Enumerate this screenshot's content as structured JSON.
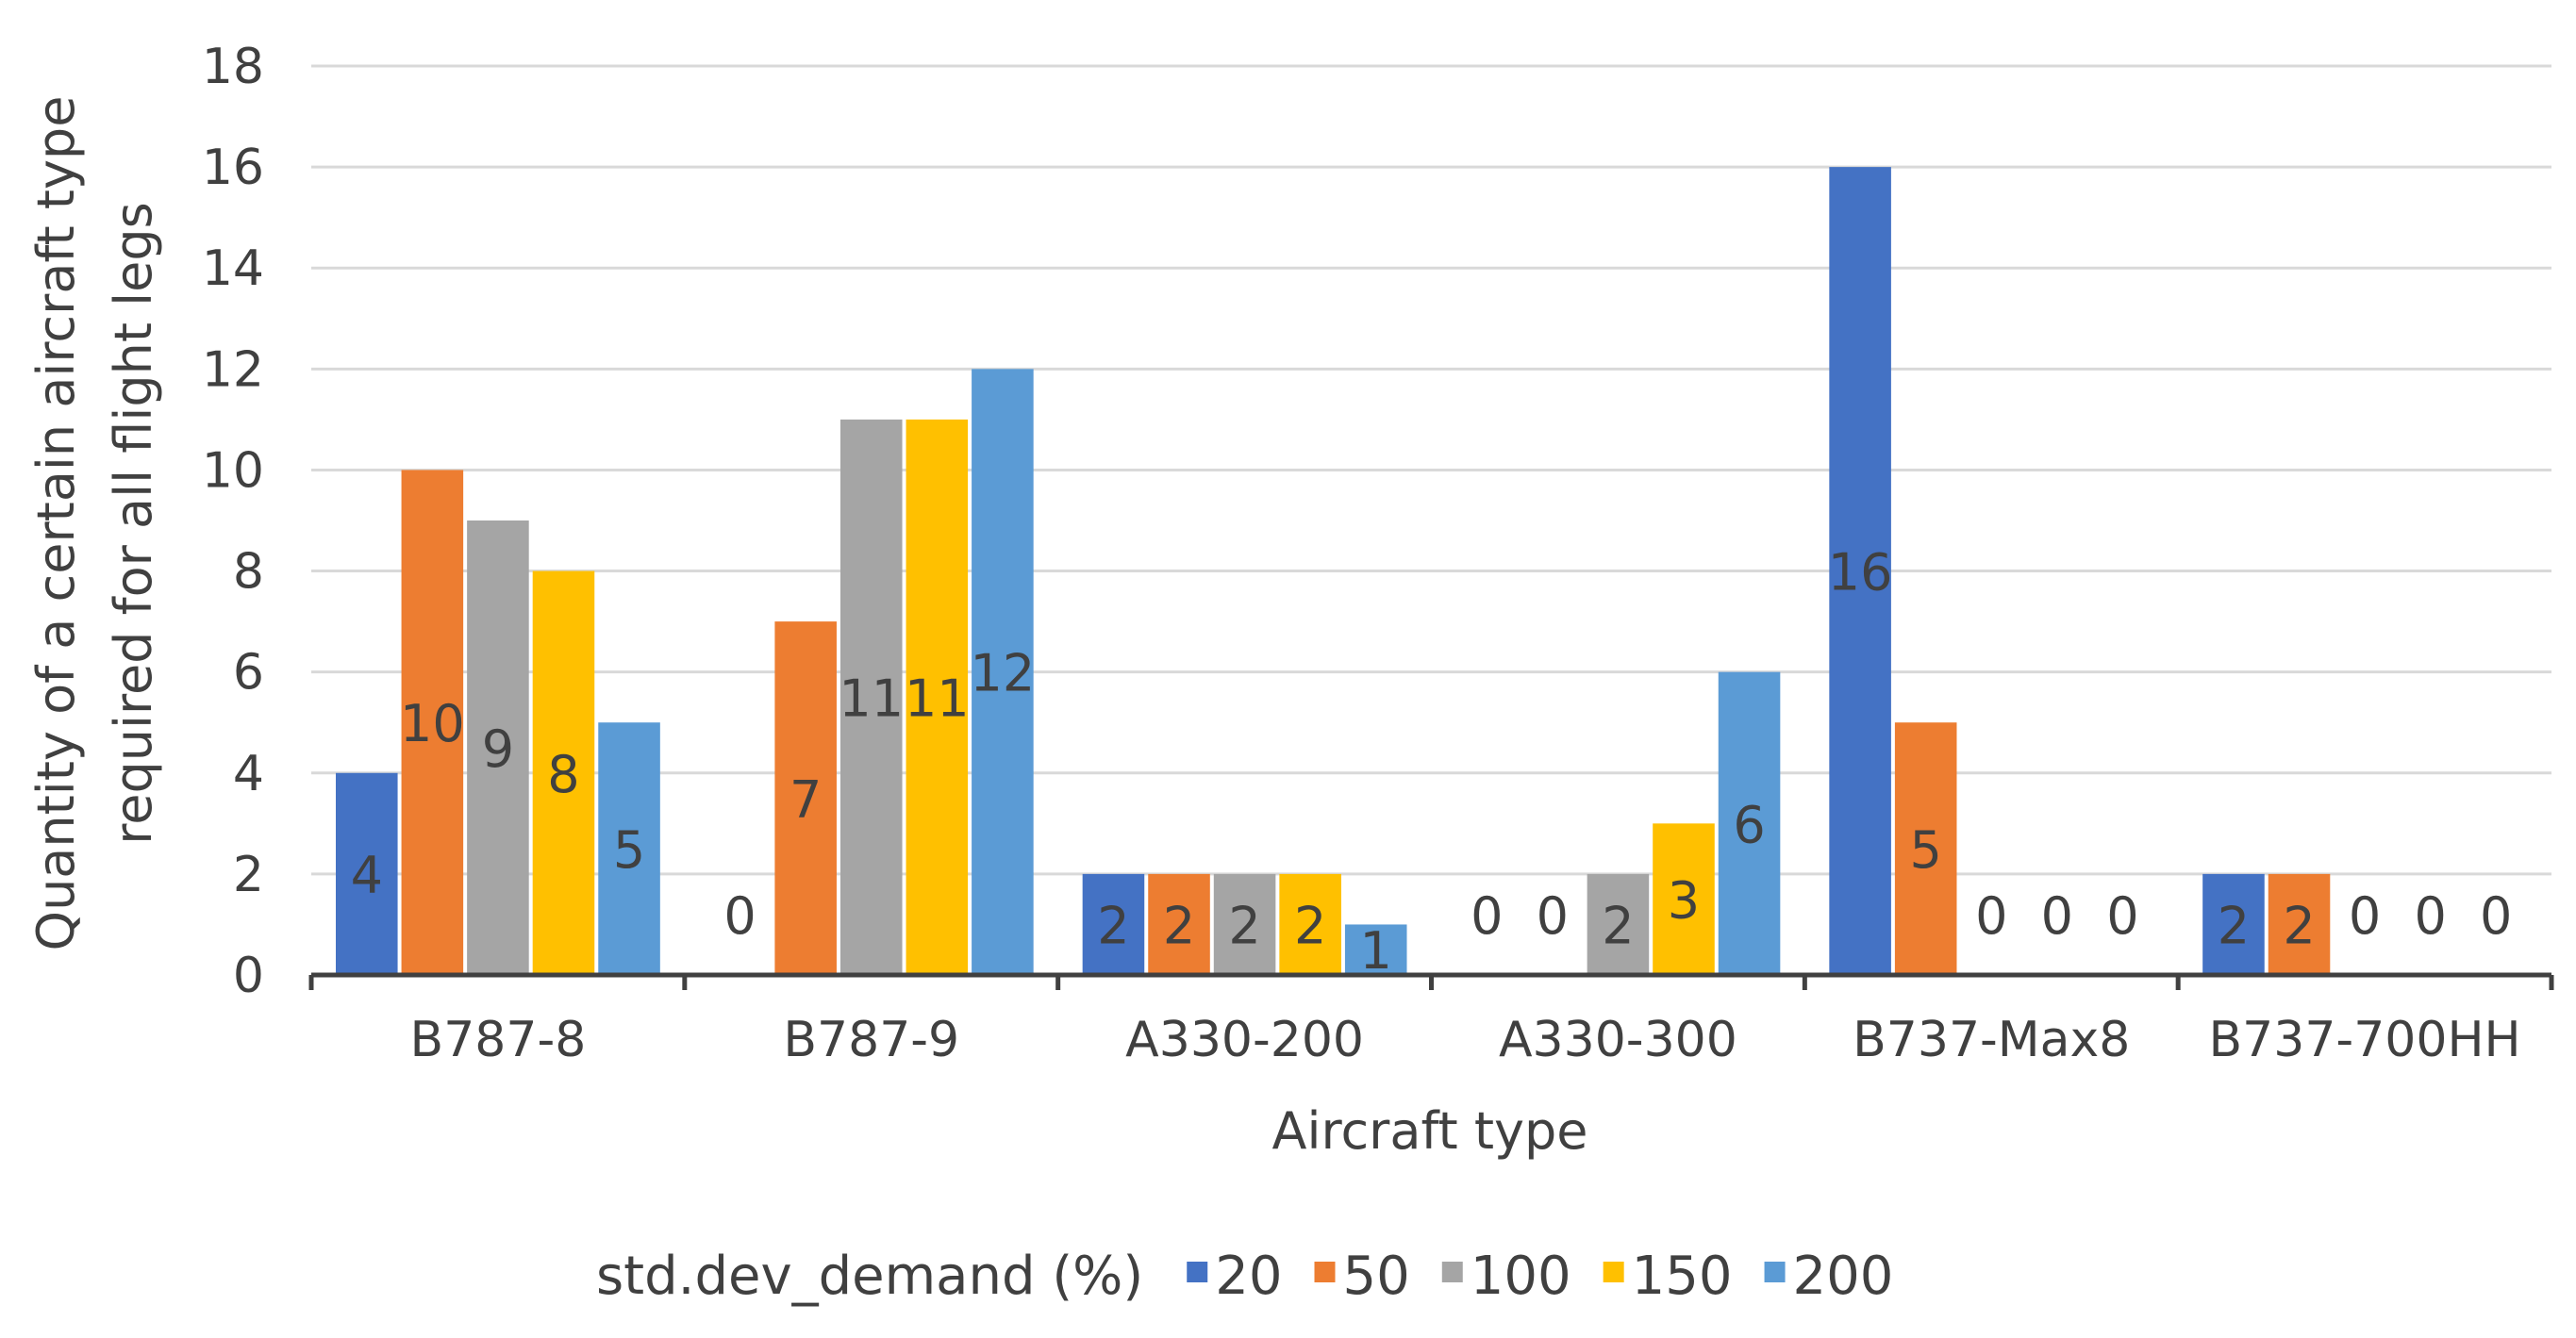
{
  "chart_data": {
    "type": "bar",
    "title": "",
    "xlabel": "Aircraft type",
    "ylabel": [
      "Quantity of a certain aircraft type",
      "required for all flight legs"
    ],
    "categories": [
      "B787-8",
      "B787-9",
      "A330-200",
      "A330-300",
      "B737-Max8",
      "B737-700HH"
    ],
    "ylim": [
      0,
      18
    ],
    "yticks": [
      "0",
      "2",
      "4",
      "6",
      "8",
      "10",
      "12",
      "14",
      "16",
      "18"
    ],
    "grid": true,
    "legend": {
      "title": "std.dev_demand (%)",
      "placement": "bottom"
    },
    "series": [
      {
        "name": "20",
        "color": "#4472C4",
        "values": [
          4,
          0,
          2,
          0,
          16,
          2
        ]
      },
      {
        "name": "50",
        "color": "#ED7D31",
        "values": [
          10,
          7,
          2,
          0,
          5,
          2
        ]
      },
      {
        "name": "100",
        "color": "#A5A5A5",
        "values": [
          9,
          11,
          2,
          2,
          0,
          0
        ]
      },
      {
        "name": "150",
        "color": "#FFC000",
        "values": [
          8,
          11,
          2,
          3,
          0,
          0
        ]
      },
      {
        "name": "200",
        "color": "#5B9BD5",
        "values": [
          5,
          12,
          1,
          6,
          0,
          0
        ]
      }
    ]
  }
}
